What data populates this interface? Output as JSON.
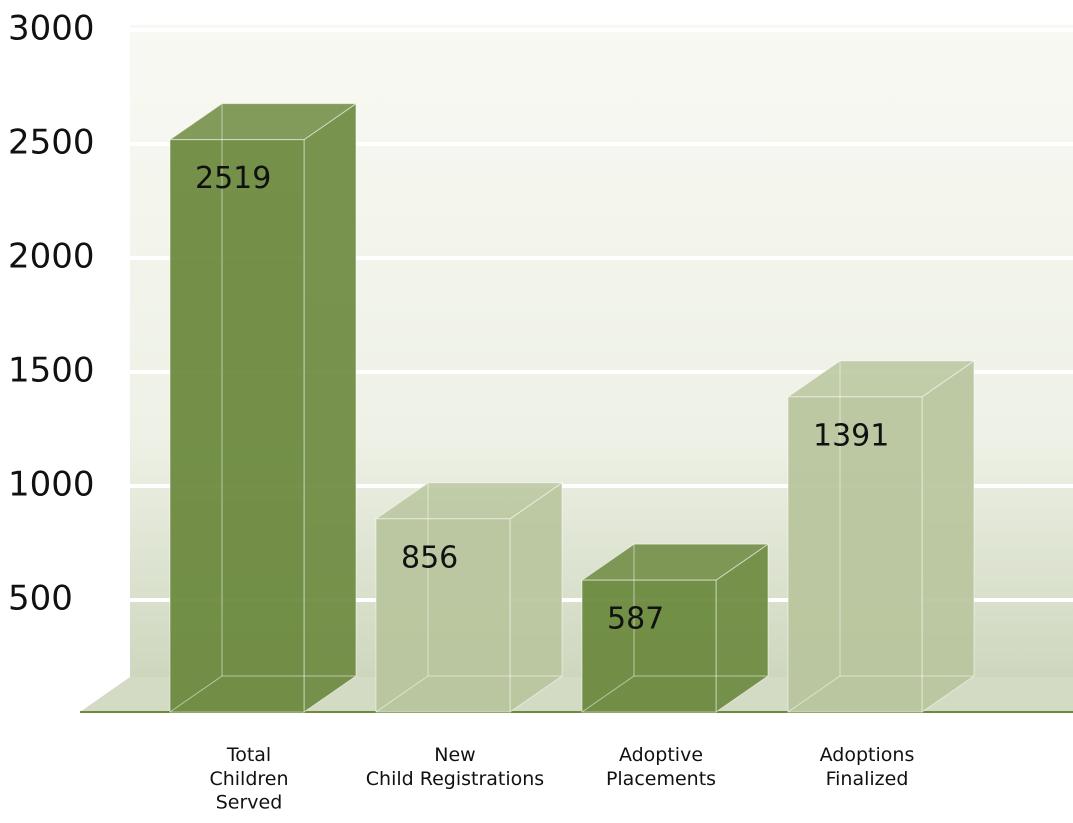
{
  "chart_data": {
    "type": "bar3d",
    "categories": [
      "Total\nChildren\nServed",
      "New\nChild Registrations",
      "Adoptive\nPlacements",
      "Adoptions\nFinalized"
    ],
    "values": [
      2519,
      856,
      587,
      1391
    ],
    "colors": [
      "#6d8a3f",
      "#b8c59d",
      "#6d8a3f",
      "#b8c59d"
    ],
    "ylim": [
      0,
      3000
    ],
    "yticks": [
      500,
      1000,
      1500,
      2000,
      2500,
      3000
    ],
    "grid": true
  }
}
